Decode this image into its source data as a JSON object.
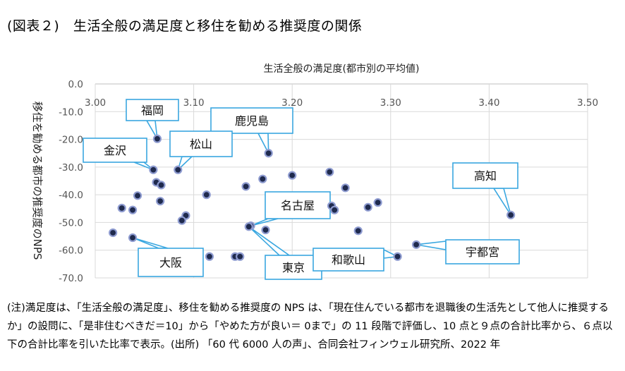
{
  "figure_title": "(図表２)　生活全般の満足度と移住を勧める推奨度の関係",
  "note": "(注)満足度は、「生活全般の満足度」、移住を勧める推奨度の NPS は、「現在住んでいる都市を退職後の生活先として他人に推奨するか」の設問に、「是非住むべきだ＝10」から「やめた方が良い＝ 0まで」の 11 段階で評価し、10 点と９点の合計比率から、６点以下の合計比率を引いた比率で表示。(出所) 「60 代 6000 人の声」、合同会社フィンウェル研究所、2022 年",
  "colors": {
    "point_fill": "#1f2a4d",
    "point_ring": "#8e9bd0",
    "callout_border": "#3aa7e0",
    "grid": "#d9d9d9",
    "axis": "#bfbfbf"
  },
  "chart_data": {
    "type": "scatter",
    "xlabel": "生活全般の満足度(都市別の平均値)",
    "ylabel": "移住を勧める都市の推奨度のNPS",
    "xlim": [
      3.0,
      3.5
    ],
    "ylim": [
      -70.0,
      0.0
    ],
    "x_ticks": [
      "3.00",
      "3.10",
      "3.20",
      "3.30",
      "3.40",
      "3.50"
    ],
    "y_ticks": [
      "0.0",
      "-10.0",
      "-20.0",
      "-30.0",
      "-40.0",
      "-50.0",
      "-60.0",
      "-70.0"
    ],
    "grid": true,
    "points": [
      {
        "x": 3.063,
        "y": -19.8,
        "label": "福岡"
      },
      {
        "x": 3.176,
        "y": -25.0,
        "label": "鹿児島"
      },
      {
        "x": 3.059,
        "y": -31.0,
        "label": "金沢"
      },
      {
        "x": 3.084,
        "y": -31.0,
        "label": "松山"
      },
      {
        "x": 3.422,
        "y": -47.3,
        "label": "高知"
      },
      {
        "x": 3.158,
        "y": -51.2,
        "label": "名古屋"
      },
      {
        "x": 3.326,
        "y": -58.0,
        "label": "宇都宮"
      },
      {
        "x": 3.156,
        "y": -51.5,
        "label": "東京"
      },
      {
        "x": 3.307,
        "y": -62.3,
        "label": "和歌山"
      },
      {
        "x": 3.038,
        "y": -55.5,
        "label": "大阪"
      },
      {
        "x": 3.018,
        "y": -53.7
      },
      {
        "x": 3.027,
        "y": -44.8
      },
      {
        "x": 3.038,
        "y": -45.5
      },
      {
        "x": 3.043,
        "y": -40.3
      },
      {
        "x": 3.062,
        "y": -35.5
      },
      {
        "x": 3.067,
        "y": -36.5
      },
      {
        "x": 3.066,
        "y": -42.3
      },
      {
        "x": 3.092,
        "y": -47.5
      },
      {
        "x": 3.088,
        "y": -49.3
      },
      {
        "x": 3.113,
        "y": -40.0
      },
      {
        "x": 3.116,
        "y": -62.3
      },
      {
        "x": 3.142,
        "y": -62.3
      },
      {
        "x": 3.147,
        "y": -62.3
      },
      {
        "x": 3.153,
        "y": -37.0
      },
      {
        "x": 3.17,
        "y": -34.3
      },
      {
        "x": 3.173,
        "y": -52.7
      },
      {
        "x": 3.2,
        "y": -33.0
      },
      {
        "x": 3.238,
        "y": -31.8
      },
      {
        "x": 3.24,
        "y": -44.0
      },
      {
        "x": 3.243,
        "y": -45.5
      },
      {
        "x": 3.254,
        "y": -37.5
      },
      {
        "x": 3.267,
        "y": -53.0
      },
      {
        "x": 3.277,
        "y": -44.5
      },
      {
        "x": 3.287,
        "y": -42.8
      }
    ]
  }
}
